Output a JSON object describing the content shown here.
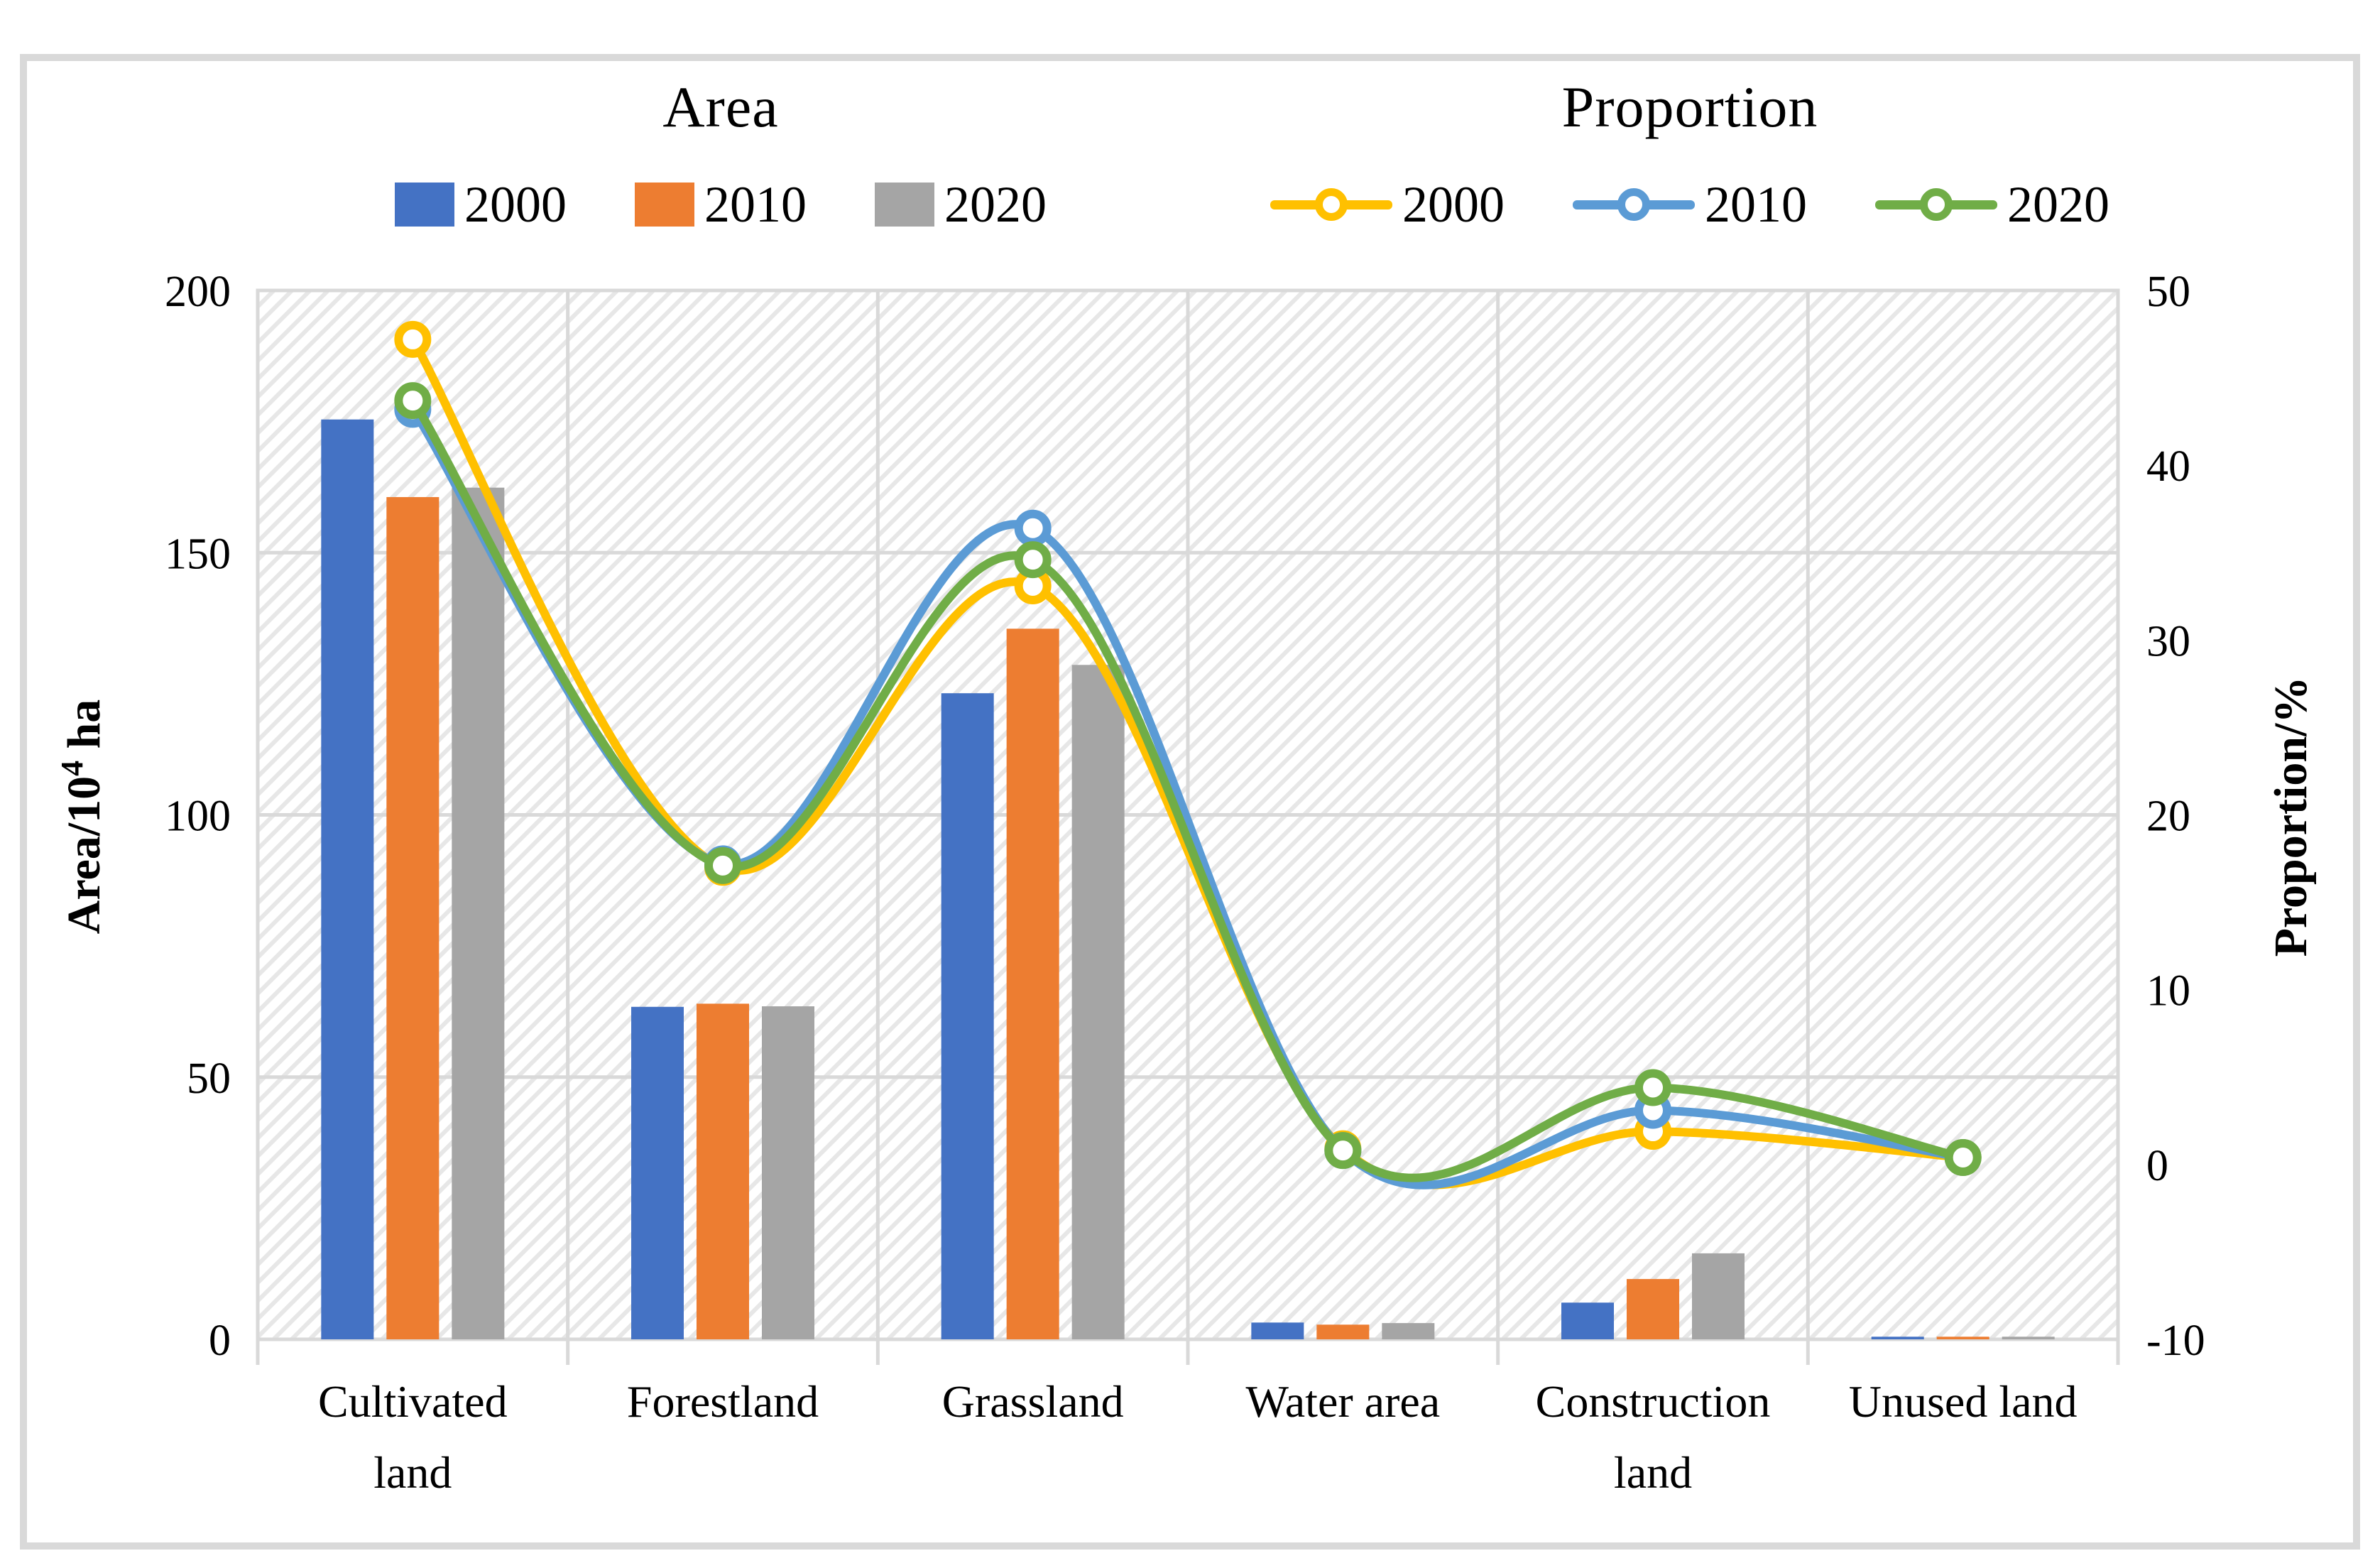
{
  "legend": {
    "area_title": "Area",
    "proportion_title": "Proportion",
    "bar_series": [
      {
        "label": "2000",
        "color": "#4472C4"
      },
      {
        "label": "2010",
        "color": "#ED7D31"
      },
      {
        "label": "2020",
        "color": "#A5A5A5"
      }
    ],
    "line_series": [
      {
        "label": "2000",
        "color": "#FFC000"
      },
      {
        "label": "2010",
        "color": "#5B9BD5"
      },
      {
        "label": "2020",
        "color": "#70AD47"
      }
    ]
  },
  "chart_data": {
    "type": "bar+line",
    "categories": [
      "Cultivated land",
      "Forestland",
      "Grassland",
      "Water area",
      "Construction land",
      "Unused land"
    ],
    "bar_series": [
      {
        "name": "2000",
        "axis": "left",
        "color": "#4472C4",
        "values": [
          175.4,
          63.4,
          123.2,
          3.2,
          7.0,
          0.5
        ]
      },
      {
        "name": "2010",
        "axis": "left",
        "color": "#ED7D31",
        "values": [
          160.6,
          64.0,
          135.5,
          2.8,
          11.5,
          0.5
        ]
      },
      {
        "name": "2020",
        "axis": "left",
        "color": "#A5A5A5",
        "values": [
          162.4,
          63.5,
          128.6,
          3.1,
          16.4,
          0.5
        ]
      }
    ],
    "line_series": [
      {
        "name": "2000",
        "axis": "right",
        "color": "#FFC000",
        "values": [
          47.2,
          17.0,
          33.1,
          0.9,
          1.9,
          0.4
        ]
      },
      {
        "name": "2010",
        "axis": "right",
        "color": "#5B9BD5",
        "values": [
          43.2,
          17.2,
          36.4,
          0.8,
          3.1,
          0.4
        ]
      },
      {
        "name": "2020",
        "axis": "right",
        "color": "#70AD47",
        "values": [
          43.7,
          17.1,
          34.6,
          0.8,
          4.4,
          0.4
        ]
      }
    ],
    "left_axis": {
      "label_prefix": "Area/10",
      "label_sup": "4",
      "label_suffix": " ha",
      "min": 0,
      "max": 200,
      "ticks": [
        200,
        150,
        100,
        50,
        0
      ]
    },
    "right_axis": {
      "label": "Proportion/%",
      "min": -10,
      "max": 50,
      "ticks": [
        50,
        40,
        30,
        20,
        10,
        0,
        -10
      ]
    },
    "grid": {
      "color": "#D9D9D9",
      "hatch_background": true,
      "legend_position": "top"
    }
  }
}
